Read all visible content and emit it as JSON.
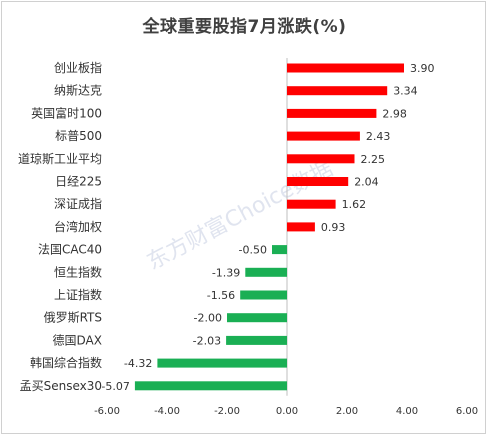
{
  "chart_data": {
    "type": "bar",
    "orientation": "horizontal",
    "title": "全球重要股指7月涨跌(%)",
    "categories": [
      "创业板指",
      "纳斯达克",
      "英国富时100",
      "标普500",
      "道琼斯工业平均",
      "日经225",
      "深证成指",
      "台湾加权",
      "法国CAC40",
      "恒生指数",
      "上证指数",
      "俄罗斯RTS",
      "德国DAX",
      "韩国综合指数",
      "孟买Sensex30"
    ],
    "values": [
      3.9,
      3.34,
      2.98,
      2.43,
      2.25,
      2.04,
      1.62,
      0.93,
      -0.5,
      -1.39,
      -1.56,
      -2.0,
      -2.03,
      -4.32,
      -5.07
    ],
    "value_labels": [
      "3.90",
      "3.34",
      "2.98",
      "2.43",
      "2.25",
      "2.04",
      "1.62",
      "0.93",
      "-0.50",
      "-1.39",
      "-1.56",
      "-2.00",
      "-2.03",
      "-4.32",
      "-5.07"
    ],
    "xlim": [
      -6,
      6
    ],
    "ticks": [
      -6,
      -4,
      -2,
      0,
      2,
      4,
      6
    ],
    "tick_labels": [
      "-6.00",
      "-4.00",
      "-2.00",
      "0.00",
      "2.00",
      "4.00",
      "6.00"
    ],
    "grid": false,
    "colors": {
      "positive": "#ff0000",
      "negative": "#1aaf54"
    },
    "watermark": "东方财富Choice数据"
  }
}
